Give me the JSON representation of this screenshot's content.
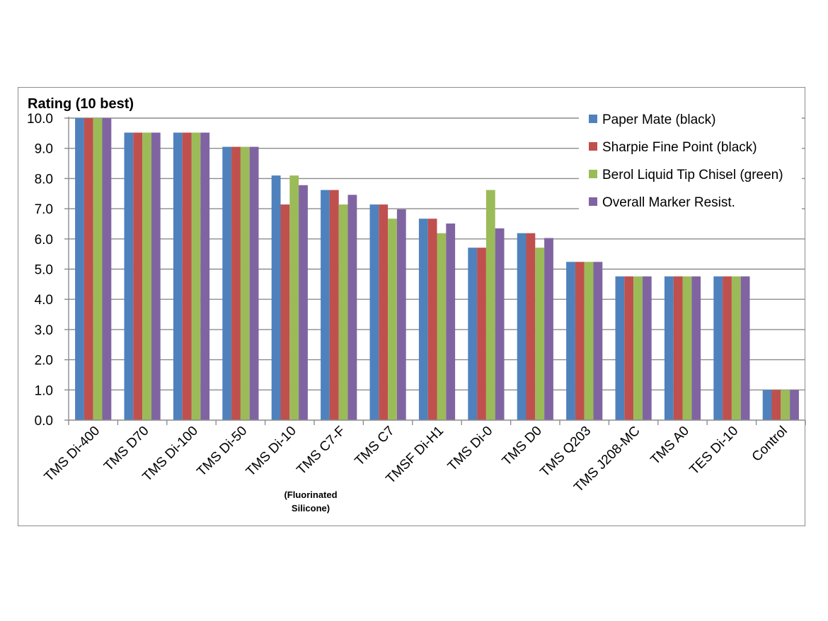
{
  "chart_data": {
    "type": "bar",
    "ylabel": "Rating (10 best)",
    "ylim": [
      0,
      10
    ],
    "yticks": [
      "0.0",
      "1.0",
      "2.0",
      "3.0",
      "4.0",
      "5.0",
      "6.0",
      "7.0",
      "8.0",
      "9.0",
      "10.0"
    ],
    "grid": true,
    "legend_position": "top-right",
    "categories": [
      "TMS Di-400",
      "TMS D70",
      "TMS Di-100",
      "TMS Di-50",
      "TMS Di-10",
      "TMS C7-F",
      "TMS C7",
      "TMSF Di-H1",
      "TMS Di-0",
      "TMS D0",
      "TMS Q203",
      "TMS J208-MC",
      "TMS A0",
      "TES Di-10",
      "Control"
    ],
    "annotations": [
      {
        "category": "TMS C7-F",
        "lines": [
          "(Fluorinated",
          "Silicone)"
        ]
      }
    ],
    "series": [
      {
        "name": "Paper Mate (black)",
        "color": "#4f81bd",
        "values": [
          10.0,
          9.52,
          9.52,
          9.05,
          8.1,
          7.62,
          7.14,
          6.67,
          5.71,
          6.19,
          5.24,
          4.76,
          4.76,
          4.76,
          1.0
        ]
      },
      {
        "name": "Sharpie Fine Point (black)",
        "color": "#c0504d",
        "values": [
          10.0,
          9.52,
          9.52,
          9.05,
          7.14,
          7.62,
          7.14,
          6.67,
          5.71,
          6.19,
          5.24,
          4.76,
          4.76,
          4.76,
          1.0
        ]
      },
      {
        "name": "Berol Liquid Tip Chisel (green)",
        "color": "#9bbb59",
        "values": [
          10.0,
          9.52,
          9.52,
          9.05,
          8.1,
          7.14,
          6.67,
          6.19,
          7.62,
          5.71,
          5.24,
          4.76,
          4.76,
          4.76,
          1.0
        ]
      },
      {
        "name": "Overall Marker Resist.",
        "color": "#8064a2",
        "values": [
          10.0,
          9.52,
          9.52,
          9.05,
          7.78,
          7.46,
          6.98,
          6.51,
          6.35,
          6.03,
          5.24,
          4.76,
          4.76,
          4.76,
          1.0
        ]
      }
    ]
  }
}
